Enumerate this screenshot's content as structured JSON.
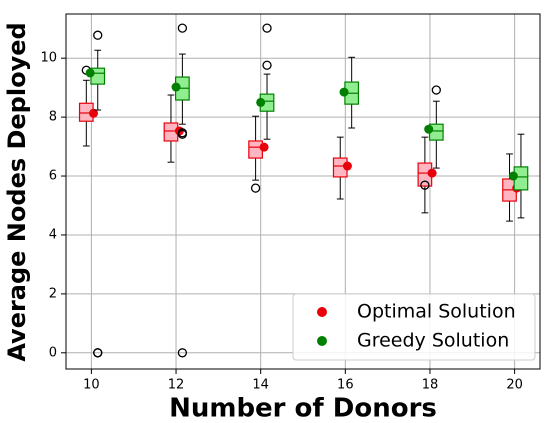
{
  "chart_data": {
    "type": "box",
    "xlabel": "Number of Donors",
    "ylabel": "Average Nodes Deployed",
    "xlim": [
      9.4,
      20.6
    ],
    "ylim": [
      -0.55,
      11.5
    ],
    "xticks": [
      10,
      12,
      14,
      16,
      18,
      20
    ],
    "yticks": [
      0,
      2,
      4,
      6,
      8,
      10
    ],
    "grid": true,
    "legend": "lower right",
    "series": [
      {
        "name": "Optimal Solution",
        "color": "#e8000b",
        "box_fill": "#ffb6c1",
        "box_edge": "#e8000b",
        "positions": [
          9.88,
          11.88,
          13.88,
          15.88,
          17.88,
          19.88
        ],
        "whislo": [
          7.02,
          6.47,
          5.86,
          5.22,
          4.75,
          4.47
        ],
        "q1": [
          7.86,
          7.19,
          6.61,
          5.97,
          5.66,
          5.15
        ],
        "med": [
          8.14,
          7.53,
          6.98,
          6.34,
          6.1,
          5.53
        ],
        "q3": [
          8.47,
          7.8,
          7.19,
          6.61,
          6.44,
          5.9
        ],
        "whishi": [
          9.25,
          8.75,
          8.03,
          7.32,
          7.32,
          6.75
        ],
        "fliers": [
          [
            9.59
          ],
          [],
          [
            5.59
          ],
          [],
          [
            5.69
          ],
          []
        ],
        "mean_x": [
          10.05,
          12.08,
          14.08,
          16.05,
          18.05,
          20.05
        ],
        "means": [
          8.13,
          7.53,
          6.98,
          6.34,
          6.1,
          5.59
        ]
      },
      {
        "name": "Greedy Solution",
        "color": "#008000",
        "box_fill": "#90ee90",
        "box_edge": "#008000",
        "positions": [
          10.15,
          12.15,
          14.15,
          16.15,
          18.15,
          20.15
        ],
        "whislo": [
          8.24,
          7.76,
          7.25,
          7.63,
          6.27,
          4.58
        ],
        "q1": [
          9.12,
          8.58,
          8.2,
          8.44,
          7.22,
          5.53
        ],
        "med": [
          9.49,
          8.98,
          8.54,
          8.81,
          7.53,
          5.97
        ],
        "q3": [
          9.66,
          9.36,
          8.78,
          9.19,
          7.76,
          6.31
        ],
        "whishi": [
          10.27,
          10.14,
          9.46,
          10.03,
          8.54,
          7.42
        ],
        "fliers": [
          [
            10.78,
            0,
            0
          ],
          [
            11.02,
            7.47,
            7.42,
            0
          ],
          [
            11.02,
            9.76
          ],
          [],
          [
            8.92
          ],
          []
        ],
        "mean_x": [
          9.97,
          12.0,
          14.0,
          15.97,
          17.97,
          19.97
        ],
        "means": [
          9.5,
          9.02,
          8.5,
          8.85,
          7.59,
          6.0
        ]
      }
    ]
  }
}
